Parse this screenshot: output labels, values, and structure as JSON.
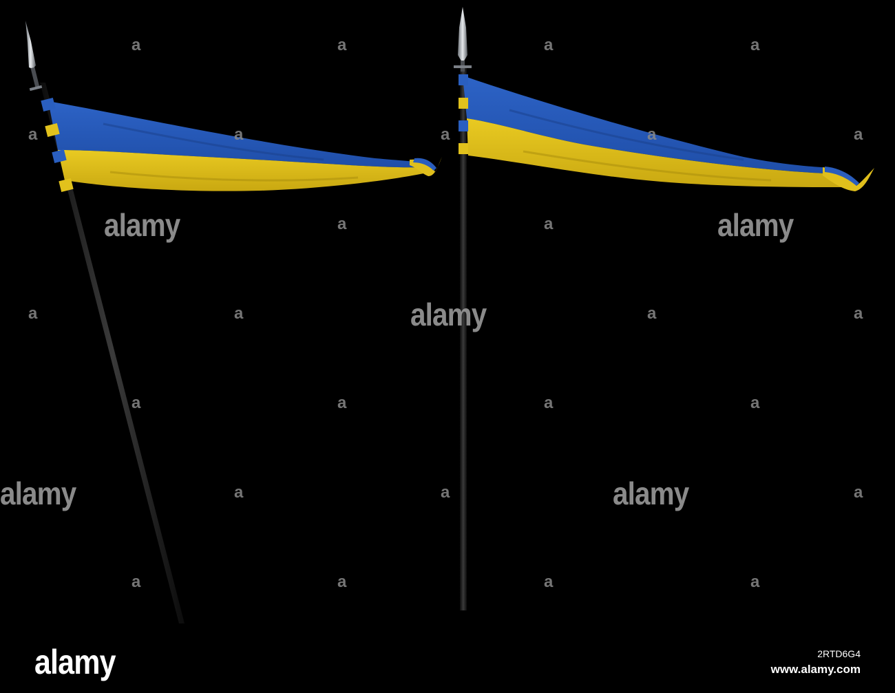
{
  "watermark": {
    "small_mark": "a",
    "brand": "alamy",
    "color": "#8a8a8a"
  },
  "footer": {
    "logo": "alamy",
    "image_id": "2RTD6G4",
    "site": "www.alamy.com"
  },
  "flag_colors": {
    "blue": "#2a5fc0",
    "yellow": "#e2c21c"
  }
}
